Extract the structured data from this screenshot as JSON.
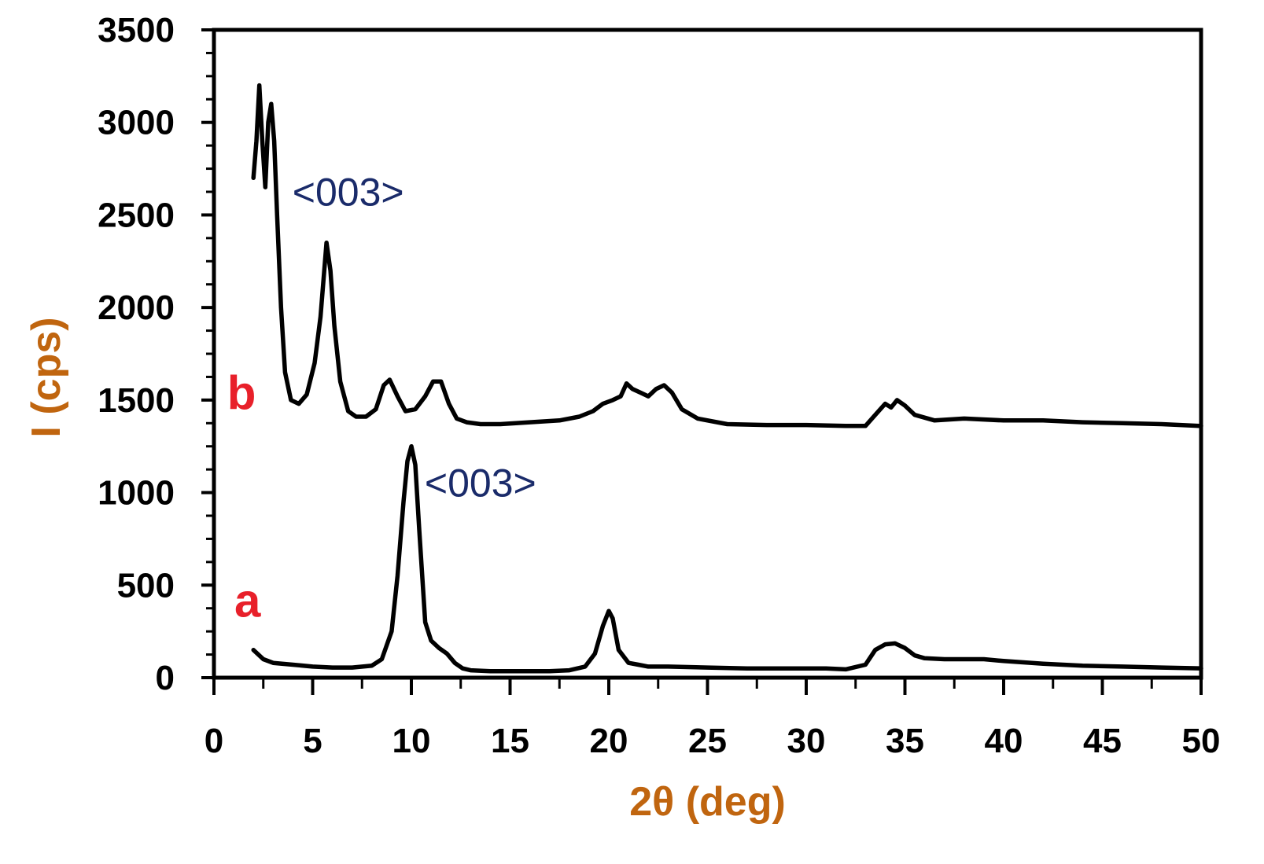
{
  "chart_data": {
    "type": "line",
    "title": "",
    "xlabel": "2θ (deg)",
    "ylabel": "I (cps)",
    "xlim": [
      0,
      50
    ],
    "ylim": [
      0,
      3500
    ],
    "xticks": [
      0,
      5,
      10,
      15,
      20,
      25,
      30,
      35,
      40,
      45,
      50
    ],
    "yticks": [
      0,
      500,
      1000,
      1500,
      2000,
      2500,
      3000,
      3500
    ],
    "xtick_labels": [
      "0",
      "5",
      "10",
      "15",
      "20",
      "25",
      "30",
      "35",
      "40",
      "45",
      "50"
    ],
    "ytick_labels": [
      "0",
      "500",
      "1000",
      "1500",
      "2000",
      "2500",
      "3000",
      "3500"
    ],
    "grid": false,
    "colors": {
      "line": "#000000",
      "series_label": "#e8202a",
      "axis_title": "#c0650f",
      "annotation": "#1a2b6a"
    },
    "series": [
      {
        "label": "a",
        "x": [
          2,
          2.5,
          3,
          4,
          5,
          6,
          7,
          8,
          8.5,
          9,
          9.3,
          9.6,
          9.8,
          10,
          10.2,
          10.4,
          10.7,
          11,
          11.4,
          11.8,
          12.2,
          12.6,
          13,
          14,
          15,
          16,
          17,
          18,
          18.8,
          19.3,
          19.7,
          20,
          20.2,
          20.5,
          21,
          21.5,
          22,
          23,
          25,
          27,
          29,
          31,
          32,
          33,
          33.5,
          34,
          34.5,
          35,
          35.5,
          36,
          37,
          38,
          39,
          40,
          42,
          44,
          46,
          48,
          50
        ],
        "y": [
          150,
          100,
          80,
          70,
          60,
          55,
          55,
          65,
          100,
          250,
          550,
          950,
          1170,
          1250,
          1150,
          800,
          300,
          200,
          160,
          130,
          80,
          50,
          40,
          35,
          35,
          35,
          35,
          40,
          60,
          130,
          280,
          360,
          320,
          150,
          80,
          70,
          60,
          60,
          55,
          50,
          50,
          50,
          45,
          70,
          150,
          180,
          185,
          160,
          120,
          105,
          100,
          100,
          100,
          90,
          75,
          65,
          60,
          55,
          50
        ]
      },
      {
        "label": "b",
        "x": [
          2,
          2.15,
          2.3,
          2.45,
          2.6,
          2.75,
          2.9,
          3.05,
          3.2,
          3.4,
          3.6,
          3.9,
          4.3,
          4.7,
          5.1,
          5.4,
          5.7,
          5.9,
          6.1,
          6.4,
          6.8,
          7.2,
          7.7,
          8.2,
          8.6,
          8.9,
          9.3,
          9.7,
          10.2,
          10.7,
          11.1,
          11.5,
          11.9,
          12.3,
          12.8,
          13.5,
          14.5,
          16,
          17.5,
          18.5,
          19.2,
          19.7,
          20.2,
          20.6,
          20.9,
          21.2,
          21.6,
          22,
          22.4,
          22.8,
          23.2,
          23.7,
          24.5,
          26,
          28,
          30,
          32,
          33,
          33.5,
          34,
          34.3,
          34.6,
          35,
          35.5,
          36.5,
          38,
          40,
          42,
          44,
          46,
          48,
          50
        ],
        "y": [
          2700,
          2900,
          3200,
          2900,
          2650,
          3000,
          3100,
          2900,
          2500,
          2000,
          1650,
          1500,
          1480,
          1530,
          1700,
          1950,
          2350,
          2200,
          1900,
          1600,
          1440,
          1410,
          1410,
          1450,
          1580,
          1610,
          1520,
          1440,
          1450,
          1520,
          1600,
          1600,
          1480,
          1400,
          1380,
          1370,
          1370,
          1380,
          1390,
          1410,
          1440,
          1480,
          1500,
          1520,
          1590,
          1560,
          1540,
          1520,
          1560,
          1580,
          1540,
          1450,
          1400,
          1370,
          1365,
          1365,
          1360,
          1360,
          1420,
          1480,
          1460,
          1500,
          1470,
          1420,
          1390,
          1400,
          1390,
          1390,
          1380,
          1375,
          1370,
          1360
        ]
      }
    ],
    "annotations": [
      {
        "text": "<003>",
        "x": 6.8,
        "y": 2550
      },
      {
        "text": "<003>",
        "x": 13.5,
        "y": 980
      }
    ]
  }
}
